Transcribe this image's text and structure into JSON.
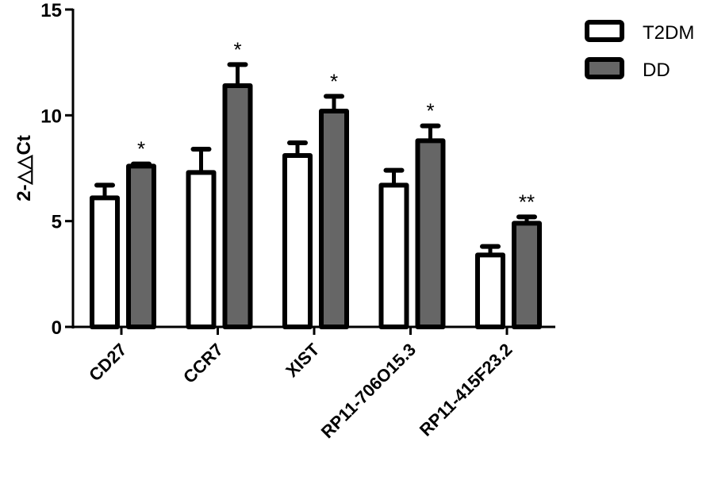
{
  "chart_data": {
    "type": "bar",
    "title": "",
    "xlabel": "",
    "ylabel": "2-△△Ct",
    "ylim": [
      0,
      15
    ],
    "yticks": [
      0,
      5,
      10,
      15
    ],
    "grid": false,
    "legend_position": "top-right",
    "categories": [
      "CD27",
      "CCR7",
      "XIST",
      "RP11-706O15.3",
      "RP11-415F23.2"
    ],
    "series": [
      {
        "name": "T2DM",
        "color": "#ffffff",
        "values": [
          6.1,
          7.3,
          8.1,
          6.7,
          3.4
        ],
        "errors": [
          0.6,
          1.1,
          0.6,
          0.7,
          0.4
        ]
      },
      {
        "name": "DD",
        "color": "#666666",
        "values": [
          7.6,
          11.4,
          10.2,
          8.8,
          4.9
        ],
        "errors": [
          0.1,
          1.0,
          0.7,
          0.7,
          0.3
        ]
      }
    ],
    "annotations": [
      "*",
      "*",
      "*",
      "*",
      "**"
    ]
  },
  "axis": {
    "ylabel": "2-△△Ct",
    "ytick_labels": [
      "0",
      "5",
      "10",
      "15"
    ]
  },
  "legend": {
    "items": [
      {
        "label": "T2DM",
        "color": "#ffffff"
      },
      {
        "label": "DD",
        "color": "#666666"
      }
    ]
  }
}
